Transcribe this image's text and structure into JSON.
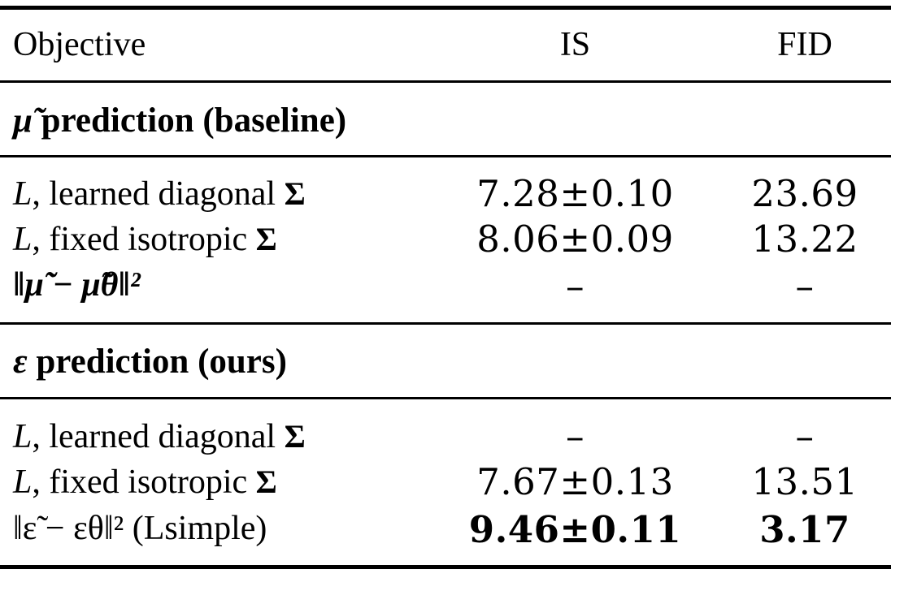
{
  "header": {
    "objective": "Objective",
    "is": "IS",
    "fid": "FID"
  },
  "sections": [
    {
      "title_symbol": "μ̃",
      "title_text": "prediction (baseline)",
      "rows": [
        {
          "obj_var": "L",
          "obj_text": ", learned diagonal ",
          "obj_sigma": "Σ",
          "is": "7.28±0.10",
          "fid": "23.69"
        },
        {
          "obj_var": "L",
          "obj_text": ", fixed isotropic ",
          "obj_sigma": "Σ",
          "is": "8.06±0.09",
          "fid": "13.22"
        },
        {
          "obj_formula": "‖μ̃ − μ̃θ‖²",
          "is": "–",
          "fid": "–"
        }
      ]
    },
    {
      "title_symbol": "ε",
      "title_text": "prediction (ours)",
      "rows": [
        {
          "obj_var": "L",
          "obj_text": ", learned diagonal ",
          "obj_sigma": "Σ",
          "is": "–",
          "fid": "–"
        },
        {
          "obj_var": "L",
          "obj_text": ", fixed isotropic ",
          "obj_sigma": "Σ",
          "is": "7.67±0.13",
          "fid": "13.51"
        },
        {
          "obj_formula": "‖ε̃ − εθ‖² (Lsimple)",
          "is": "9.46±0.11",
          "fid": "3.17",
          "bold": true
        }
      ]
    }
  ]
}
